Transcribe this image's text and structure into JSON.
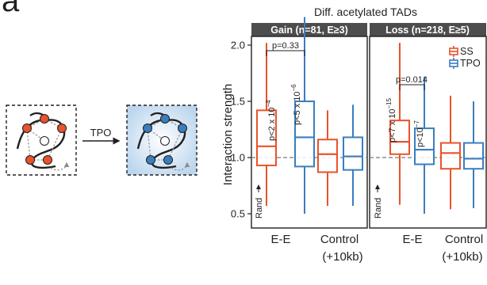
{
  "figure_letter": "a",
  "schematic": {
    "arrow_label": "TPO",
    "nodes_before": "#e8532b",
    "nodes_after": "#3a7ebf"
  },
  "colors": {
    "SS": "#e8532b",
    "TPO": "#3a7ebf",
    "header_bg": "#4d4d4d"
  },
  "chart_data": {
    "type": "boxplot",
    "title": "Diff. acetylated TADs",
    "ylabel": "Interaction strength",
    "ylim": [
      0.45,
      2.3
    ],
    "yticks": [
      "0.5",
      "1.0",
      "1.5",
      "2.0"
    ],
    "yticks_values": [
      0.5,
      1.0,
      1.5,
      2.0
    ],
    "reference_line": 1.0,
    "reference_label": "Rand",
    "legend": {
      "position": "top-right",
      "entries": [
        "SS",
        "TPO"
      ]
    },
    "panels": [
      {
        "header": "Gain (n=81, E≥3)",
        "categories": [
          "E-E",
          "Control",
          "(+10kb)"
        ],
        "boxes": [
          {
            "group": "E-E",
            "series": "SS",
            "min": 0.57,
            "q1": 0.93,
            "median": 1.1,
            "q3": 1.42,
            "max": 2.02
          },
          {
            "group": "E-E",
            "series": "TPO",
            "min": 0.5,
            "q1": 0.92,
            "median": 1.18,
            "q3": 1.5,
            "max": 2.25
          },
          {
            "group": "Control",
            "series": "SS",
            "min": 0.57,
            "q1": 0.87,
            "median": 1.03,
            "q3": 1.16,
            "max": 1.42
          },
          {
            "group": "Control",
            "series": "TPO",
            "min": 0.57,
            "q1": 0.89,
            "median": 1.01,
            "q3": 1.18,
            "max": 1.47
          }
        ],
        "pvalue_bracket": "p=0.33",
        "pvalue_ss": "p<2 x 10",
        "pvalue_ss_exp": "−4",
        "pvalue_tpo": "p<5 x 10",
        "pvalue_tpo_exp": "−6"
      },
      {
        "header": "Loss (n=218, E≥5)",
        "categories": [
          "E-E",
          "Control",
          "(+10kb)"
        ],
        "boxes": [
          {
            "group": "E-E",
            "series": "SS",
            "min": 0.58,
            "q1": 1.03,
            "median": 1.14,
            "q3": 1.33,
            "max": 2.02
          },
          {
            "group": "E-E",
            "series": "TPO",
            "min": 0.5,
            "q1": 0.94,
            "median": 1.07,
            "q3": 1.26,
            "max": 1.72
          },
          {
            "group": "Control",
            "series": "SS",
            "min": 0.54,
            "q1": 0.9,
            "median": 1.04,
            "q3": 1.13,
            "max": 1.55
          },
          {
            "group": "Control",
            "series": "TPO",
            "min": 0.55,
            "q1": 0.9,
            "median": 0.99,
            "q3": 1.13,
            "max": 1.5
          }
        ],
        "pvalue_bracket": "p=0.014",
        "pvalue_ss": "p<7 x 10",
        "pvalue_ss_exp": "−15",
        "pvalue_tpo": "p<10",
        "pvalue_tpo_exp": "−7"
      }
    ]
  }
}
